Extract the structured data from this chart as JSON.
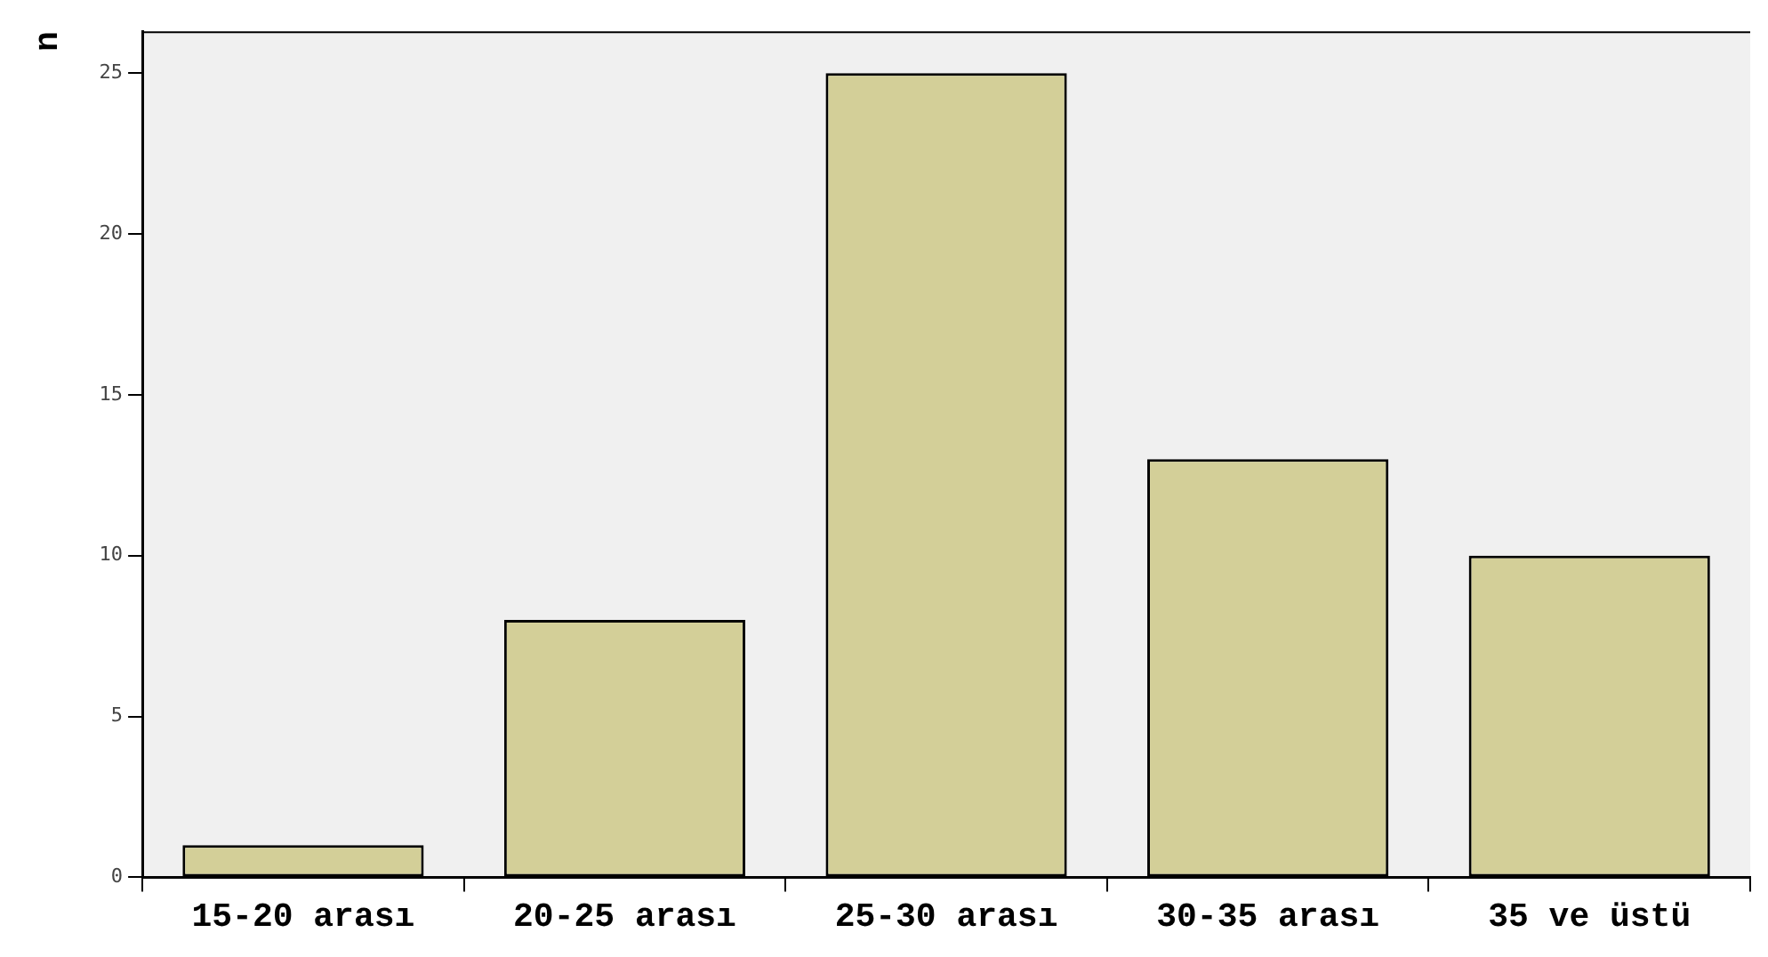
{
  "chart_data": {
    "type": "bar",
    "ylabel": "n",
    "categories": [
      "15-20 arası",
      "20-25 arası",
      "25-30 arası",
      "30-35 arası",
      "35 ve üstü"
    ],
    "values": [
      1,
      8,
      25,
      13,
      10
    ],
    "color": "#d3cf98",
    "ylim": [
      0,
      26.3
    ],
    "yticks": [
      0,
      5,
      10,
      15,
      20,
      25
    ],
    "grid": false,
    "legend": false
  }
}
